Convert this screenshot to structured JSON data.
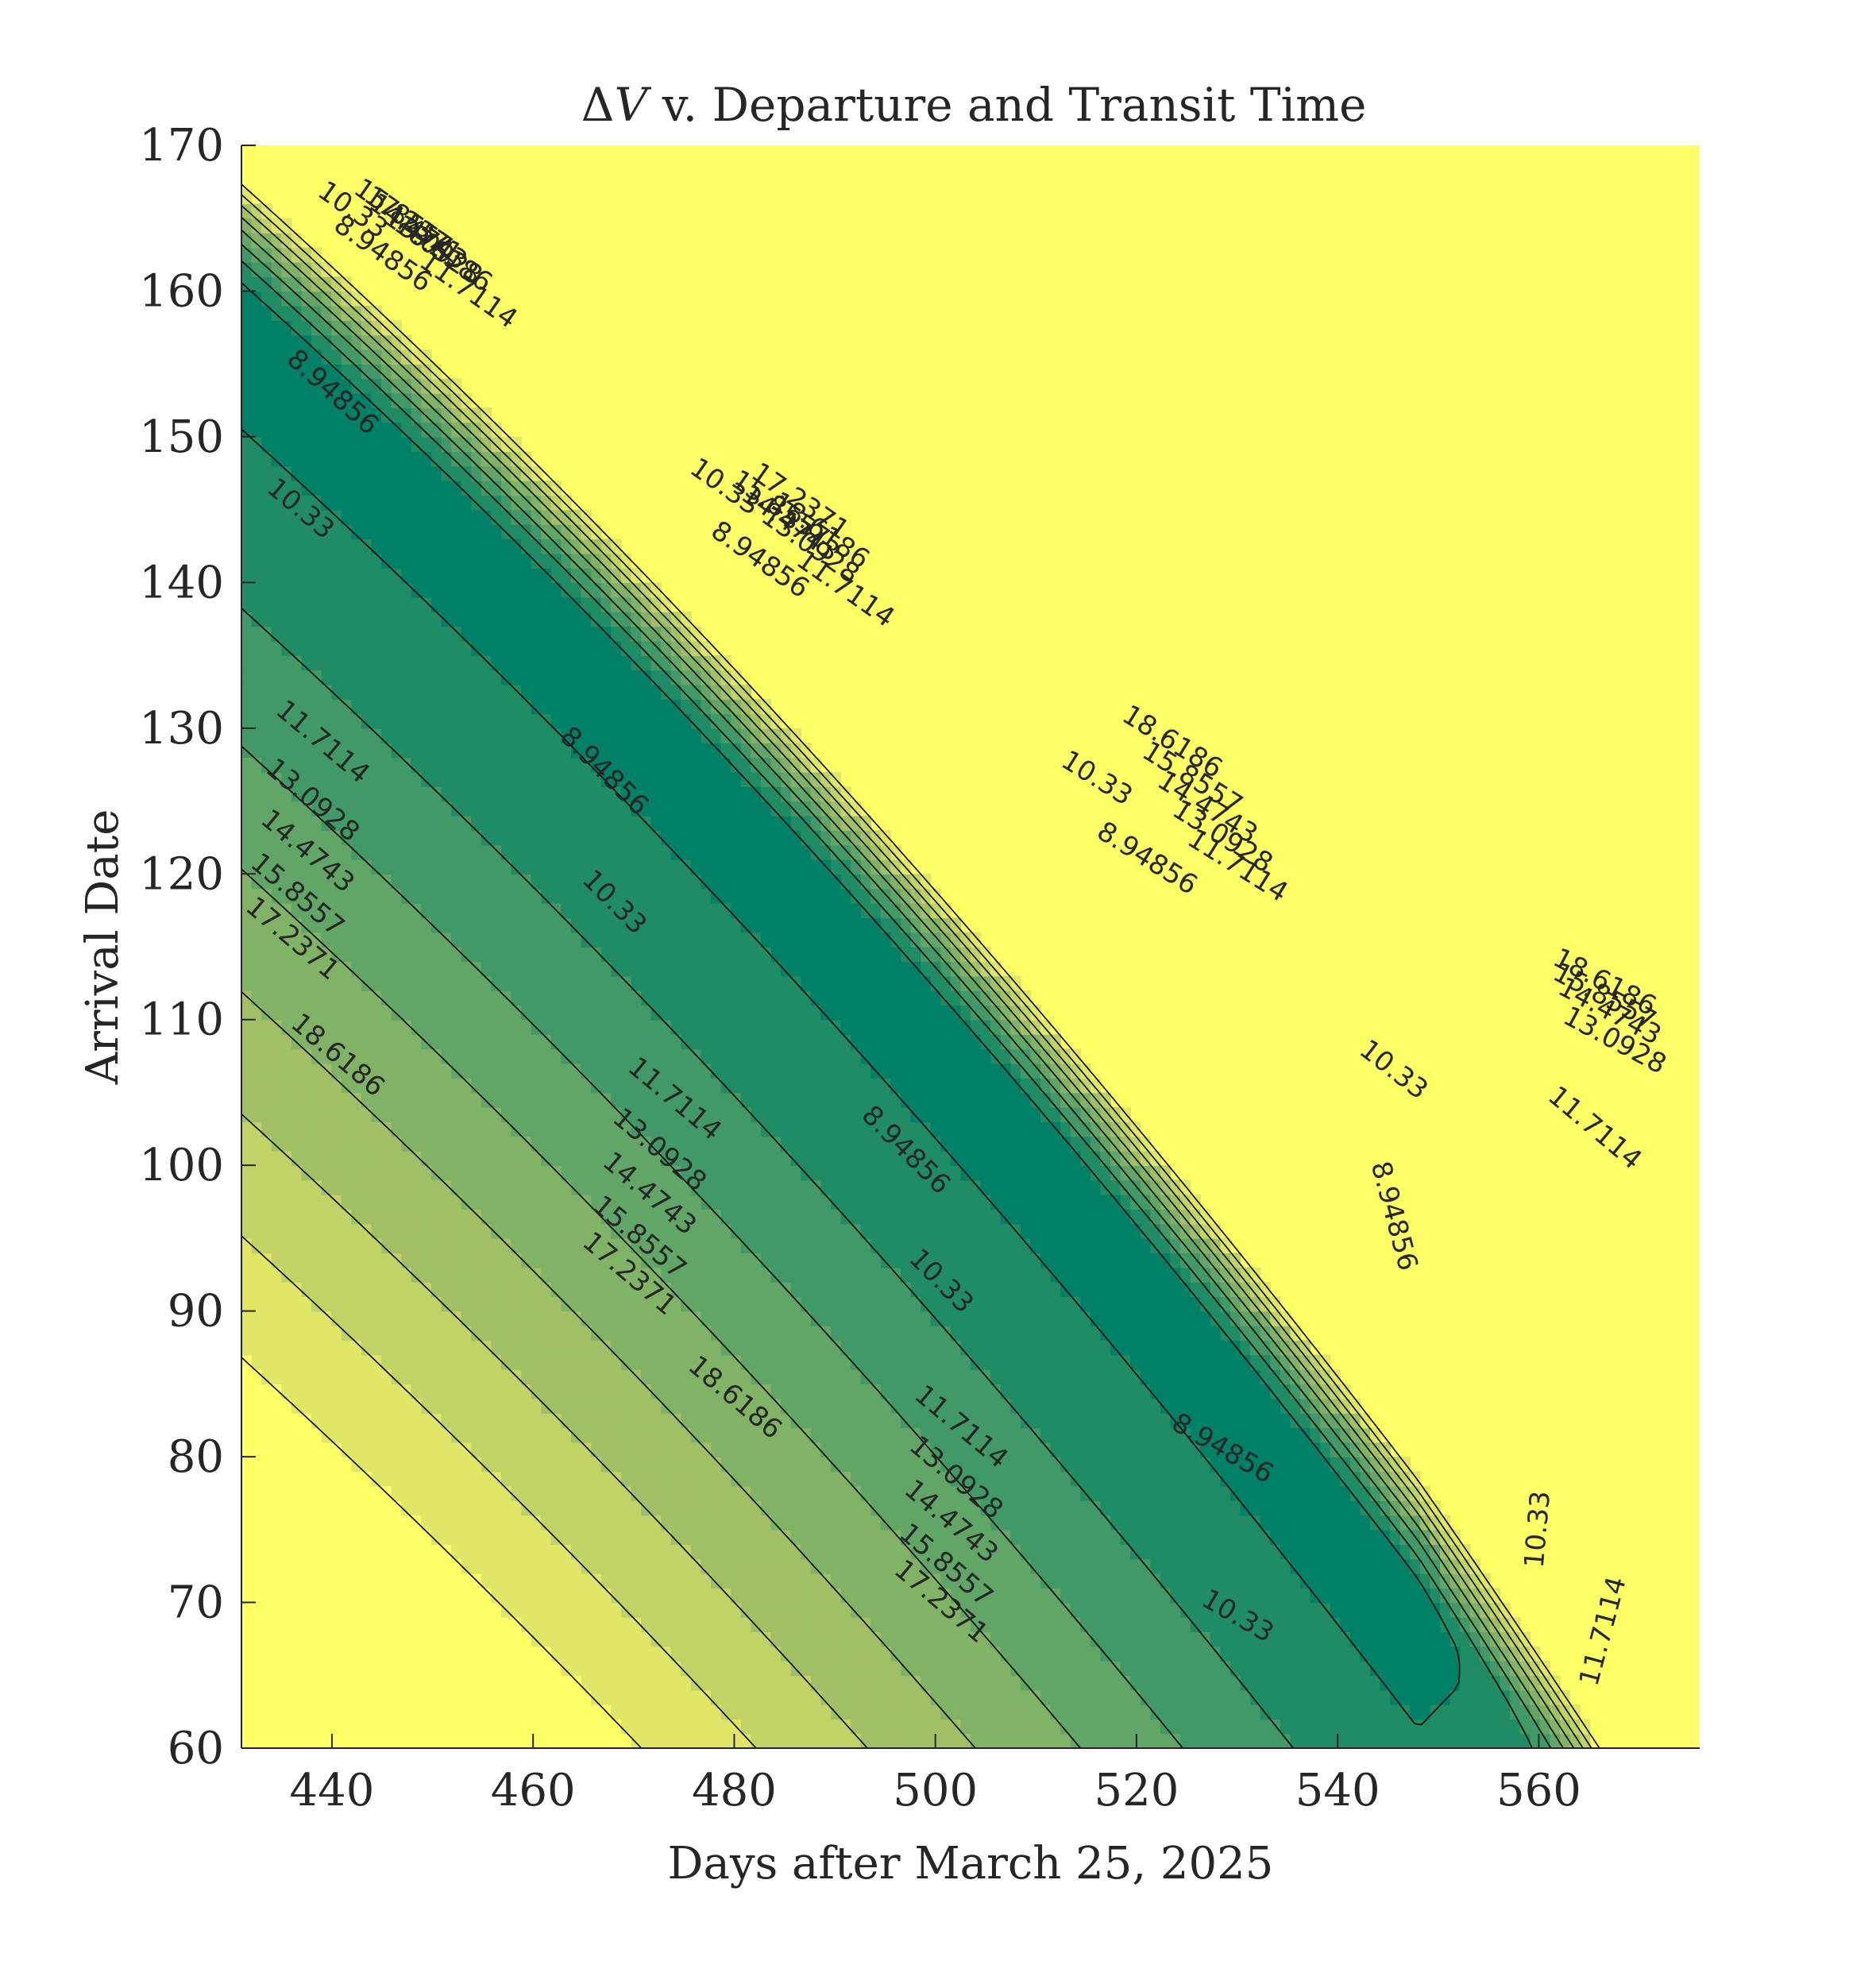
{
  "chart_data": {
    "type": "contour",
    "title_prefix": "Δ",
    "title_var": "V",
    "title_rest": " v. Departure and Transit Time",
    "xlabel": "Days after March 25, 2025",
    "ylabel": "Arrival Date",
    "xlim": [
      431,
      576
    ],
    "ylim": [
      60,
      170
    ],
    "xticks": [
      440,
      460,
      480,
      500,
      520,
      540,
      560
    ],
    "yticks": [
      60,
      70,
      80,
      90,
      100,
      110,
      120,
      130,
      140,
      150,
      160,
      170
    ],
    "contour_levels": [
      8.94856,
      10.33,
      11.7114,
      13.0928,
      14.4743,
      15.8557,
      17.2371,
      18.6186
    ],
    "level_labels": [
      "8.94856",
      "10.33",
      "11.7114",
      "13.0928",
      "14.4743",
      "15.8557",
      "17.2371",
      "18.6186"
    ],
    "colors": {
      "lowest": "#008066",
      "bands": [
        "#008066",
        "#1f8c66",
        "#409966",
        "#61a666",
        "#80b366",
        "#a1c066",
        "#c1d366",
        "#e0e666",
        "#ffff66"
      ],
      "background": "#ffff66",
      "line": "#000000"
    },
    "label_placements": [
      {
        "text": "8.94856",
        "x": 440,
        "y": 153,
        "angle": 42
      },
      {
        "text": "10.33",
        "x": 436.8,
        "y": 145,
        "angle": 40
      },
      {
        "text": "11.7114",
        "x": 439,
        "y": 129,
        "angle": 40
      },
      {
        "text": "13.0928",
        "x": 438,
        "y": 125,
        "angle": 40
      },
      {
        "text": "14.4743",
        "x": 437.5,
        "y": 121.5,
        "angle": 40
      },
      {
        "text": "15.8557",
        "x": 436.5,
        "y": 118.5,
        "angle": 40
      },
      {
        "text": "17.2371",
        "x": 436,
        "y": 115.5,
        "angle": 40
      },
      {
        "text": "18.6186",
        "x": 440.5,
        "y": 107.5,
        "angle": 40
      },
      {
        "text": "8.94856",
        "x": 467,
        "y": 127,
        "angle": 45
      },
      {
        "text": "10.33",
        "x": 468,
        "y": 118,
        "angle": 45
      },
      {
        "text": "11.7114",
        "x": 474,
        "y": 104.5,
        "angle": 40
      },
      {
        "text": "13.0928",
        "x": 472.5,
        "y": 101,
        "angle": 40
      },
      {
        "text": "14.4743",
        "x": 471.5,
        "y": 98,
        "angle": 40
      },
      {
        "text": "15.8557",
        "x": 470.5,
        "y": 95,
        "angle": 40
      },
      {
        "text": "17.2371",
        "x": 469.5,
        "y": 92.5,
        "angle": 40
      },
      {
        "text": "18.6186",
        "x": 480,
        "y": 84,
        "angle": 40
      },
      {
        "text": "8.94856",
        "x": 497,
        "y": 101,
        "angle": 45
      },
      {
        "text": "10.33",
        "x": 500.5,
        "y": 92,
        "angle": 45
      },
      {
        "text": "11.7114",
        "x": 502.5,
        "y": 82,
        "angle": 40
      },
      {
        "text": "13.0928",
        "x": 502,
        "y": 78.5,
        "angle": 40
      },
      {
        "text": "14.4743",
        "x": 501.5,
        "y": 75.5,
        "angle": 40
      },
      {
        "text": "15.8557",
        "x": 501,
        "y": 72.5,
        "angle": 40
      },
      {
        "text": "17.2371",
        "x": 500.5,
        "y": 70,
        "angle": 40
      },
      {
        "text": "8.94856",
        "x": 528.5,
        "y": 80.5,
        "angle": 30
      },
      {
        "text": "10.33",
        "x": 530,
        "y": 69,
        "angle": 30
      },
      {
        "text": "8.94856",
        "x": 545.5,
        "y": 96.5,
        "angle": 75
      },
      {
        "text": "10.33",
        "x": 545.5,
        "y": 106.5,
        "angle": 38
      },
      {
        "text": "10.33",
        "x": 560,
        "y": 75,
        "angle": -85
      },
      {
        "text": "11.7114",
        "x": 566.5,
        "y": 68,
        "angle": -75
      },
      {
        "text": "11.7114",
        "x": 565.5,
        "y": 102.5,
        "angle": 40
      },
      {
        "text": "13.0928",
        "x": 567.5,
        "y": 108.5,
        "angle": 28
      },
      {
        "text": "14.4743",
        "x": 567,
        "y": 110.5,
        "angle": 28
      },
      {
        "text": "15.8557",
        "x": 566.5,
        "y": 111.5,
        "angle": 28
      },
      {
        "text": "18.6186",
        "x": 566.5,
        "y": 112.5,
        "angle": 28
      },
      {
        "text": "10.33",
        "x": 516,
        "y": 126.5,
        "angle": 32
      },
      {
        "text": "8.94856",
        "x": 521,
        "y": 121,
        "angle": 32
      },
      {
        "text": "11.7114",
        "x": 530,
        "y": 120.5,
        "angle": 32
      },
      {
        "text": "13.0928",
        "x": 528.5,
        "y": 122.5,
        "angle": 32
      },
      {
        "text": "14.4743",
        "x": 527,
        "y": 124.5,
        "angle": 32
      },
      {
        "text": "15.8557",
        "x": 525.5,
        "y": 126.5,
        "angle": 32
      },
      {
        "text": "18.6186",
        "x": 523.5,
        "y": 129,
        "angle": 32
      },
      {
        "text": "10.33",
        "x": 479,
        "y": 146.5,
        "angle": 35
      },
      {
        "text": "8.94856",
        "x": 482.5,
        "y": 141.5,
        "angle": 35
      },
      {
        "text": "11.7114",
        "x": 491,
        "y": 139.5,
        "angle": 35
      },
      {
        "text": "13.0928",
        "x": 487.5,
        "y": 142.5,
        "angle": 35
      },
      {
        "text": "14.4743",
        "x": 485.5,
        "y": 144,
        "angle": 35
      },
      {
        "text": "15.8557",
        "x": 484.5,
        "y": 145,
        "angle": 35
      },
      {
        "text": "17.2371",
        "x": 486.5,
        "y": 145.5,
        "angle": 35
      },
      {
        "text": "18.6186",
        "x": 488.5,
        "y": 143.5,
        "angle": 35
      },
      {
        "text": "10.33",
        "x": 442,
        "y": 165.5,
        "angle": 35
      },
      {
        "text": "8.94856",
        "x": 445,
        "y": 162.5,
        "angle": 35
      },
      {
        "text": "11.7114",
        "x": 453.5,
        "y": 160,
        "angle": 35
      },
      {
        "text": "13.0928",
        "x": 450,
        "y": 163,
        "angle": 35
      },
      {
        "text": "14.4743",
        "x": 448.5,
        "y": 164,
        "angle": 35
      },
      {
        "text": "15.8557",
        "x": 447,
        "y": 165,
        "angle": 35
      },
      {
        "text": "17.2371",
        "x": 448,
        "y": 164.5,
        "angle": 35
      },
      {
        "text": "18.6186",
        "x": 451,
        "y": 162.5,
        "angle": 35
      }
    ]
  }
}
